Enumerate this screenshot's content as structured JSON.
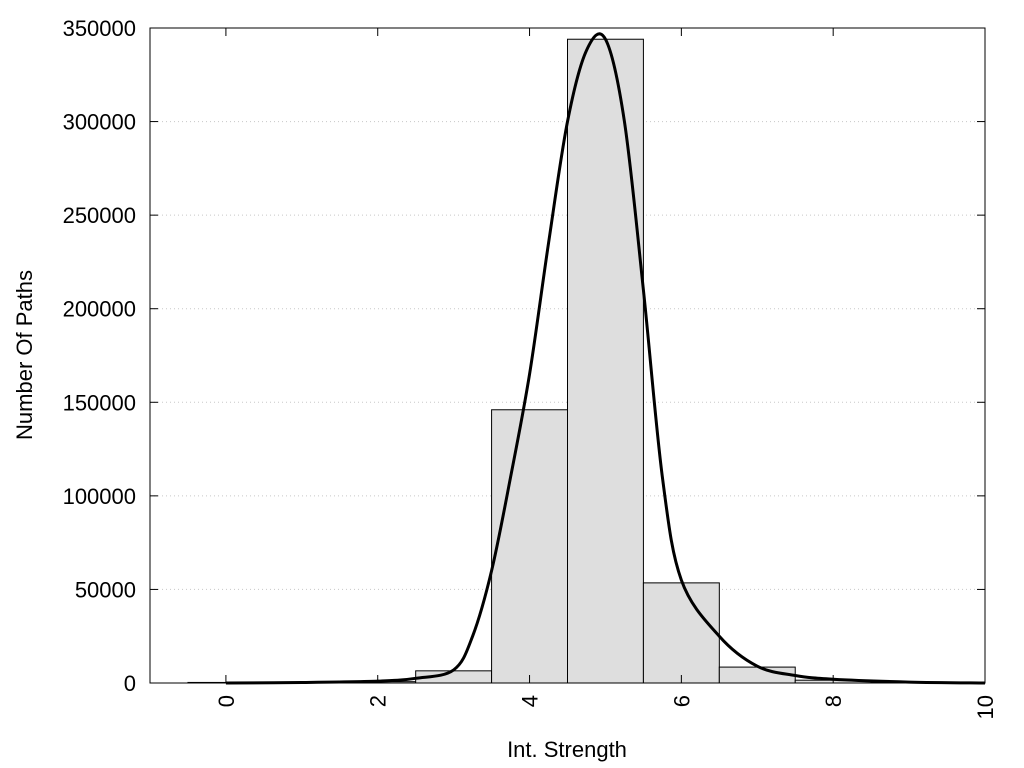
{
  "chart_data": {
    "type": "bar",
    "title": "",
    "xlabel": "Int. Strength",
    "ylabel": "Number Of Paths",
    "xlim": [
      -1,
      10
    ],
    "ylim": [
      0,
      350000
    ],
    "x_ticks": [
      0,
      2,
      4,
      6,
      8,
      10
    ],
    "x_tick_labels": [
      "0",
      "2",
      "4",
      "6",
      "8",
      "10"
    ],
    "y_ticks": [
      0,
      50000,
      100000,
      150000,
      200000,
      250000,
      300000,
      350000
    ],
    "y_tick_labels": [
      "0",
      "50000",
      "100000",
      "150000",
      "200000",
      "250000",
      "300000",
      "350000"
    ],
    "grid": "horizontal dotted",
    "bin_width": 1,
    "bars": {
      "x": [
        0,
        1,
        2,
        3,
        4,
        5,
        6,
        7,
        8,
        9,
        10
      ],
      "values": [
        300,
        200,
        700,
        6500,
        146000,
        344000,
        53500,
        8500,
        1500,
        500,
        0
      ]
    },
    "fit_curve": {
      "x": [
        0,
        1,
        2,
        2.5,
        3,
        3.25,
        3.5,
        3.75,
        4,
        4.25,
        4.5,
        4.75,
        5,
        5.25,
        5.5,
        5.75,
        6,
        6.5,
        7,
        7.5,
        8,
        9,
        10
      ],
      "y": [
        0,
        300,
        1000,
        2500,
        7000,
        25000,
        60000,
        110000,
        165000,
        235000,
        300000,
        338000,
        344000,
        300000,
        210000,
        110000,
        55000,
        25000,
        9000,
        4000,
        2000,
        500,
        0
      ]
    },
    "colors": {
      "bar_fill": "#dedede",
      "bar_stroke": "#000000",
      "curve": "#000000",
      "grid": "#c8c8c8"
    }
  }
}
